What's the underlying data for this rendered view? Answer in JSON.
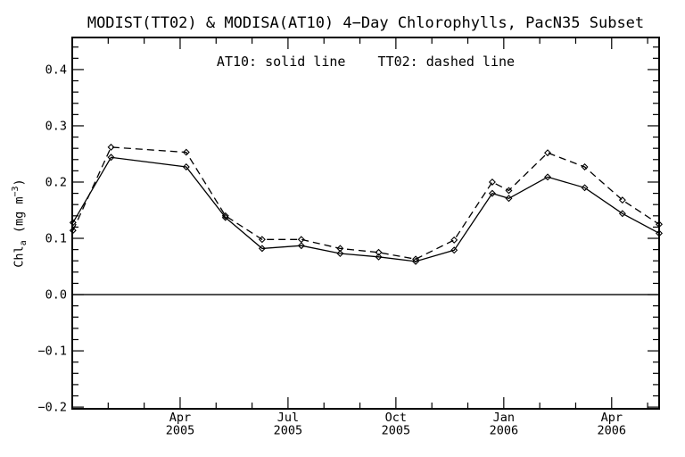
{
  "title": "MODIST(TT02) & MODISA(AT10) 4−Day Chlorophylls, PacN35 Subset",
  "annotation": "AT10: solid line    TT02: dashed line",
  "y_axis_label_parts": {
    "text1": "Chl",
    "sub": "a",
    "text2": " (mg m",
    "sup": "−3",
    "text3": ")"
  },
  "colors": {
    "foreground": "#000000",
    "background": "#ffffff"
  },
  "chart_data": {
    "type": "line",
    "title": "MODIST(TT02) & MODISA(AT10) 4−Day Chlorophylls, PacN35 Subset",
    "annotation": "AT10: solid line    TT02: dashed line",
    "xlabel": "",
    "ylabel": "Chl_a (mg m^-3)",
    "x_unit": "months since 2005-01-01, estimated from plot positions",
    "xlim": [
      0,
      16.32
    ],
    "ylim": [
      -0.203,
      0.457
    ],
    "grid": false,
    "zero_line": true,
    "legend_position": "annotation centered above plot",
    "x": [
      0.02,
      1.08,
      3.17,
      4.26,
      5.28,
      6.37,
      7.45,
      8.52,
      9.55,
      10.62,
      11.68,
      12.14,
      13.22,
      14.25,
      15.3,
      16.32
    ],
    "series": [
      {
        "name": "AT10",
        "source": "MODISA",
        "line_style": "solid",
        "marker": "diamond",
        "values": [
          0.128,
          0.244,
          0.227,
          0.137,
          0.082,
          0.087,
          0.073,
          0.067,
          0.059,
          0.079,
          0.18,
          0.171,
          0.209,
          0.19,
          0.144,
          0.109
        ]
      },
      {
        "name": "TT02",
        "source": "MODIST",
        "line_style": "dashed",
        "marker": "diamond",
        "values": [
          0.114,
          0.262,
          0.253,
          0.14,
          0.098,
          0.098,
          0.082,
          0.075,
          0.063,
          0.097,
          0.2,
          0.185,
          0.252,
          0.227,
          0.168,
          0.125
        ]
      }
    ],
    "x_major_ticks": [
      {
        "m": 3,
        "label": "Apr",
        "year": "2005"
      },
      {
        "m": 6,
        "label": "Jul",
        "year": "2005"
      },
      {
        "m": 9,
        "label": "Oct",
        "year": "2005"
      },
      {
        "m": 12,
        "label": "Jan",
        "year": "2006"
      },
      {
        "m": 15,
        "label": "Apr",
        "year": "2006"
      }
    ],
    "x_minor_tick_months": [
      1,
      2,
      4,
      5,
      7,
      8,
      10,
      11,
      13,
      14,
      16
    ],
    "y_major_ticks": [
      {
        "v": 0.4,
        "label": "0.4"
      },
      {
        "v": 0.3,
        "label": "0.3"
      },
      {
        "v": 0.2,
        "label": "0.2"
      },
      {
        "v": 0.1,
        "label": "0.1"
      },
      {
        "v": 0.0,
        "label": "0.0"
      },
      {
        "v": -0.1,
        "label": "−0.1"
      },
      {
        "v": -0.2,
        "label": "−0.2"
      }
    ],
    "y_minor_step": 0.02
  }
}
